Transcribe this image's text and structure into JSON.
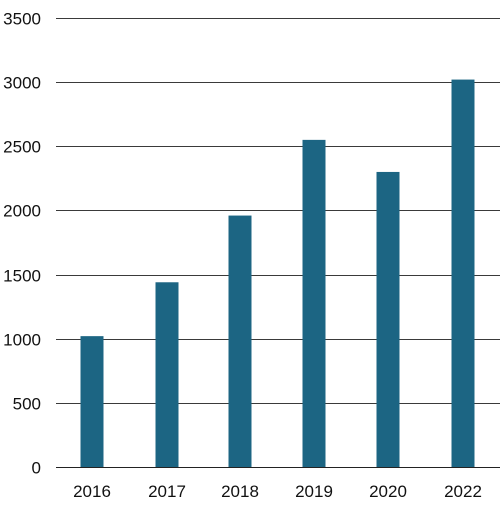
{
  "chart_data": {
    "type": "bar",
    "title": "",
    "xlabel": "",
    "ylabel": "",
    "categories": [
      "2016",
      "2017",
      "2018",
      "2019",
      "2020",
      "2022"
    ],
    "values": [
      1020,
      1440,
      1960,
      2550,
      2300,
      3020
    ],
    "ylim": [
      0,
      3500
    ],
    "yticks": [
      0,
      500,
      1000,
      1500,
      2000,
      2500,
      3000,
      3500
    ],
    "ytick_labels": [
      "0",
      "500",
      "1000",
      "1500",
      "2000",
      "2500",
      "3000",
      "3500"
    ],
    "grid": true,
    "legend": "none",
    "bar_color": "#1c6583"
  }
}
